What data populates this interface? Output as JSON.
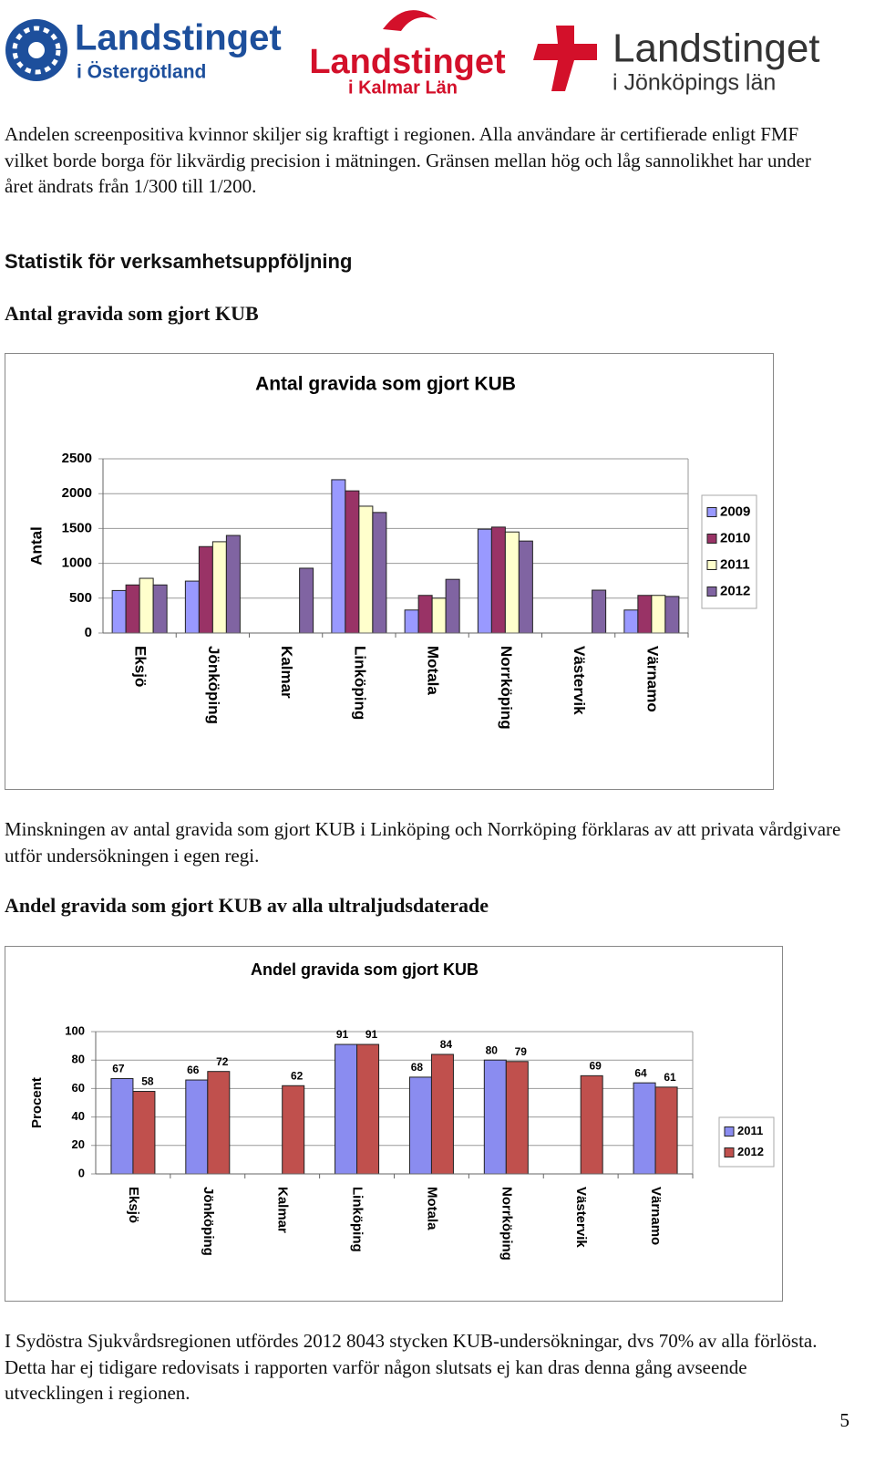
{
  "logos": [
    {
      "line1": "Landstinget",
      "line2": "i Östergötland"
    },
    {
      "line1": "Landstinget",
      "line2": "i Kalmar Län"
    },
    {
      "line1": "Landstinget",
      "line2": "i Jönköpings län"
    }
  ],
  "paragraph_1": "Andelen screenpositiva kvinnor skiljer sig kraftigt i regionen. Alla användare är certifierade enligt FMF vilket borde borga för likvärdig precision i mätningen. Gränsen mellan hög och låg sannolikhet har under året ändrats från 1/300 till 1/200.",
  "section_heading": "Statistik för verksamhetsuppföljning",
  "subheading_1": "Antal gravida som gjort KUB",
  "paragraph_2": "Minskningen av antal gravida som gjort KUB i Linköping och Norrköping förklaras av att privata vårdgivare utför undersökningen i egen regi.",
  "subheading_2": "Andel gravida som gjort KUB av alla ultraljudsdaterade",
  "paragraph_3": "I Sydöstra Sjukvårdsregionen utfördes 2012 8043 stycken KUB-undersökningar, dvs 70% av alla förlösta. Detta har ej tidigare redovisats i rapporten varför någon slutsats ej kan dras denna gång avseende utvecklingen i regionen.",
  "page_number": "5",
  "chart_data": [
    {
      "type": "bar",
      "title": "Antal gravida som gjort KUB",
      "y_label": "Antal",
      "categories": [
        "Eksjö",
        "Jönköping",
        "Kalmar",
        "Linköping",
        "Motala",
        "Norrköping",
        "Västervik",
        "Värnamo"
      ],
      "series": [
        {
          "name": "2009",
          "color": "#9999ff",
          "values": [
            610,
            745,
            null,
            2200,
            330,
            1490,
            null,
            330
          ]
        },
        {
          "name": "2010",
          "color": "#993366",
          "values": [
            690,
            1240,
            null,
            2040,
            540,
            1520,
            null,
            540
          ]
        },
        {
          "name": "2011",
          "color": "#ffffcc",
          "values": [
            785,
            1310,
            null,
            1820,
            500,
            1450,
            null,
            540
          ]
        },
        {
          "name": "2012",
          "color": "#8064a2",
          "values": [
            690,
            1400,
            930,
            1730,
            770,
            1320,
            615,
            525
          ]
        }
      ],
      "ylim": [
        0,
        2500
      ],
      "yticks": [
        0,
        500,
        1000,
        1500,
        2000,
        2500
      ],
      "grid": true,
      "legend": "right",
      "data_labels": false
    },
    {
      "type": "bar",
      "title": "Andel gravida som gjort KUB",
      "y_label": "Procent",
      "categories": [
        "Eksjö",
        "Jönköping",
        "Kalmar",
        "Linköping",
        "Motala",
        "Norrköping",
        "Västervik",
        "Värnamo"
      ],
      "series": [
        {
          "name": "2011",
          "color": "#8a8cf0",
          "values": [
            67,
            66,
            null,
            91,
            68,
            80,
            null,
            64
          ]
        },
        {
          "name": "2012",
          "color": "#c0504d",
          "values": [
            58,
            72,
            62,
            91,
            84,
            79,
            69,
            61
          ]
        }
      ],
      "ylim": [
        0,
        100
      ],
      "yticks": [
        0,
        20,
        40,
        60,
        80,
        100
      ],
      "grid": true,
      "legend": "right",
      "data_labels": true
    }
  ]
}
